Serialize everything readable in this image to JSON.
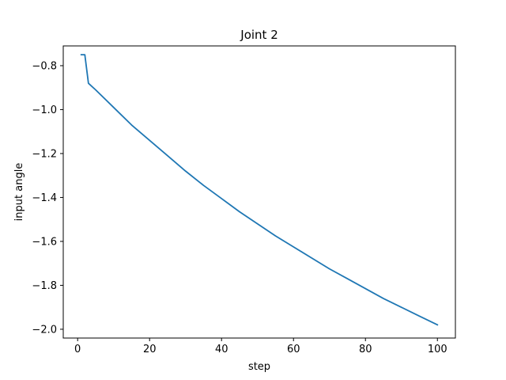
{
  "chart_data": {
    "type": "line",
    "title": "Joint 2",
    "xlabel": "step",
    "ylabel": "input angle",
    "xlim": [
      -4,
      105
    ],
    "ylim": [
      -2.04,
      -0.71
    ],
    "xticks": [
      0,
      20,
      40,
      60,
      80,
      100
    ],
    "xtick_labels": [
      "0",
      "20",
      "40",
      "60",
      "80",
      "100"
    ],
    "yticks": [
      -0.8,
      -1.0,
      -1.2,
      -1.4,
      -1.6,
      -1.8,
      -2.0
    ],
    "ytick_labels": [
      "−0.8",
      "−1.0",
      "−1.2",
      "−1.4",
      "−1.6",
      "−1.8",
      "−2.0"
    ],
    "grid": false,
    "legend": "none",
    "series": [
      {
        "color": "#1f77b4",
        "x": [
          1,
          2,
          3,
          5,
          10,
          15,
          20,
          25,
          30,
          35,
          40,
          45,
          50,
          55,
          60,
          65,
          70,
          75,
          80,
          85,
          90,
          95,
          100
        ],
        "y": [
          -0.75,
          -0.75,
          -0.88,
          -0.91,
          -0.99,
          -1.07,
          -1.14,
          -1.21,
          -1.28,
          -1.345,
          -1.405,
          -1.465,
          -1.52,
          -1.575,
          -1.625,
          -1.675,
          -1.725,
          -1.77,
          -1.815,
          -1.86,
          -1.9,
          -1.94,
          -1.98
        ]
      }
    ]
  }
}
